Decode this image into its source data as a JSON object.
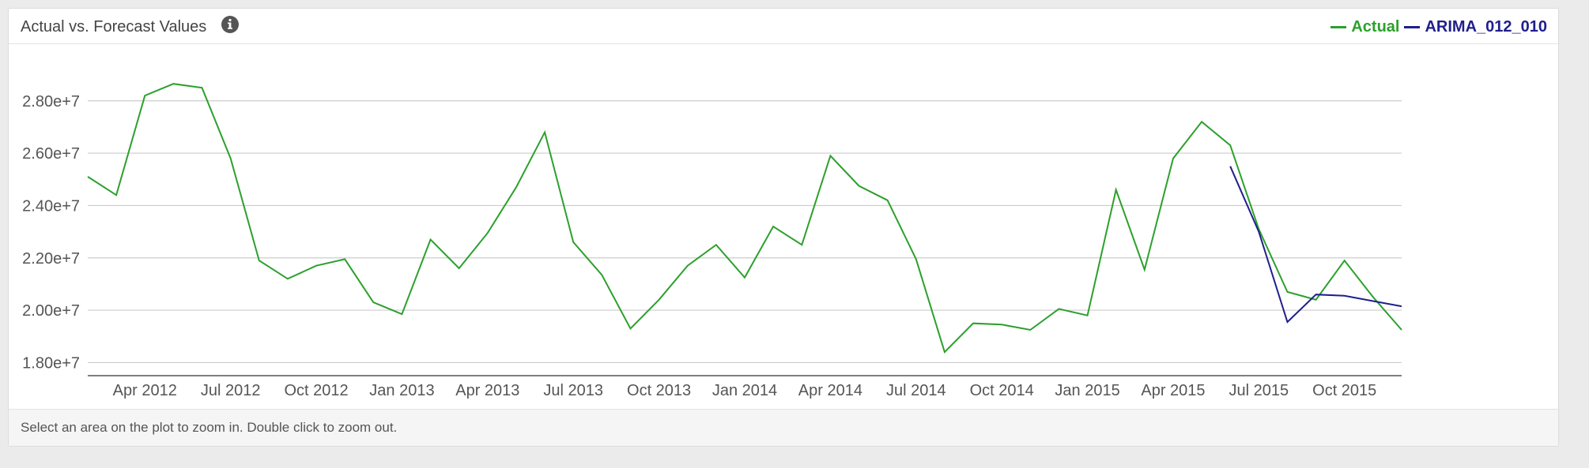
{
  "panel": {
    "title": "Actual vs. Forecast Values",
    "info_icon": "info-circle-icon",
    "footer": "Select an area on the plot to zoom in. Double click to zoom out."
  },
  "chart_data": {
    "type": "line",
    "title": "Actual vs. Forecast Values",
    "xlabel": "",
    "ylabel": "",
    "ylim": [
      17500000,
      29500000
    ],
    "xlim": [
      "2012-02",
      "2015-12"
    ],
    "grid": true,
    "legend_position": "top-right",
    "y_ticks": [
      18000000,
      20000000,
      22000000,
      24000000,
      26000000,
      28000000
    ],
    "y_tick_labels": [
      "1.80e+7",
      "2.00e+7",
      "2.20e+7",
      "2.40e+7",
      "2.60e+7",
      "2.80e+7"
    ],
    "x_ticks": [
      "2012-04",
      "2012-07",
      "2012-10",
      "2013-01",
      "2013-04",
      "2013-07",
      "2013-10",
      "2014-01",
      "2014-04",
      "2014-07",
      "2014-10",
      "2015-01",
      "2015-04",
      "2015-07",
      "2015-10"
    ],
    "x_tick_labels": [
      "Apr 2012",
      "Jul 2012",
      "Oct 2012",
      "Jan 2013",
      "Apr 2013",
      "Jul 2013",
      "Oct 2013",
      "Jan 2014",
      "Apr 2014",
      "Jul 2014",
      "Oct 2014",
      "Jan 2015",
      "Apr 2015",
      "Jul 2015",
      "Oct 2015"
    ],
    "series": [
      {
        "name": "Actual",
        "color": "#2ca02c",
        "x": [
          "2012-02",
          "2012-03",
          "2012-04",
          "2012-05",
          "2012-06",
          "2012-07",
          "2012-08",
          "2012-09",
          "2012-10",
          "2012-11",
          "2012-12",
          "2013-01",
          "2013-02",
          "2013-03",
          "2013-04",
          "2013-05",
          "2013-06",
          "2013-07",
          "2013-08",
          "2013-09",
          "2013-10",
          "2013-11",
          "2013-12",
          "2014-01",
          "2014-02",
          "2014-03",
          "2014-04",
          "2014-05",
          "2014-06",
          "2014-07",
          "2014-08",
          "2014-09",
          "2014-10",
          "2014-11",
          "2014-12",
          "2015-01",
          "2015-02",
          "2015-03",
          "2015-04",
          "2015-05",
          "2015-06",
          "2015-07",
          "2015-08",
          "2015-09",
          "2015-10",
          "2015-11",
          "2015-12"
        ],
        "values": [
          25100000,
          24400000,
          28200000,
          28650000,
          28500000,
          25800000,
          21900000,
          21200000,
          21700000,
          21950000,
          20300000,
          19850000,
          22700000,
          21600000,
          22950000,
          24700000,
          26800000,
          22600000,
          21350000,
          19300000,
          20400000,
          21700000,
          22500000,
          21250000,
          23200000,
          22500000,
          25900000,
          24750000,
          24200000,
          21950000,
          18400000,
          19500000,
          19450000,
          19250000,
          20050000,
          19800000,
          24600000,
          21550000,
          25800000,
          27200000,
          26300000,
          23100000,
          20700000,
          20400000,
          21900000,
          20500000,
          19250000
        ]
      },
      {
        "name": "ARIMA_012_010",
        "color": "#1f1f8c",
        "x": [
          "2015-06",
          "2015-07",
          "2015-08",
          "2015-09",
          "2015-10",
          "2015-11",
          "2015-12"
        ],
        "values": [
          25500000,
          23000000,
          19550000,
          20600000,
          20550000,
          20350000,
          20150000
        ]
      }
    ]
  }
}
